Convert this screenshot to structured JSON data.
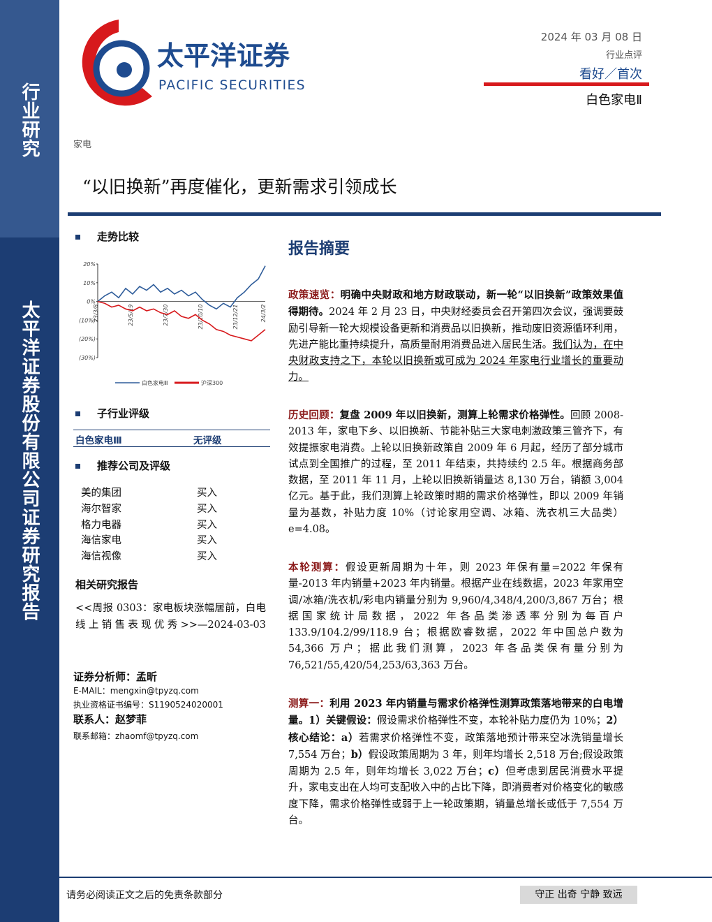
{
  "header": {
    "logo_cn": "太平洋证券",
    "logo_en": "PACIFIC SECURITIES",
    "date": "2024 年 03 月 08 日",
    "report_type": "行业点评",
    "rating": "看好／首次",
    "sector": "白色家电Ⅱ"
  },
  "sidebar": {
    "top": "行业研究",
    "bottom": "太平洋证券股份有限公司证券研究报告"
  },
  "category": "家电",
  "title": "“以旧换新”再度催化，更新需求引领成长",
  "trend": {
    "heading": "走势比较",
    "chart_data": {
      "type": "line",
      "categories": [
        "23/3/8",
        null,
        null,
        null,
        null,
        "23/5/19",
        null,
        null,
        null,
        null,
        "23/7/30",
        null,
        null,
        null,
        null,
        "23/10/10",
        null,
        null,
        null,
        null,
        "23/12/21",
        null,
        null,
        null,
        "24/3/2"
      ],
      "ylim": [
        -30,
        20
      ],
      "yticks": [
        {
          "value": 20,
          "label": "20%"
        },
        {
          "value": 10,
          "label": "10%"
        },
        {
          "value": 0,
          "label": "0%"
        },
        {
          "value": -10,
          "label": "(10%)"
        },
        {
          "value": -20,
          "label": "(20%)"
        },
        {
          "value": -30,
          "label": "(30%)"
        }
      ],
      "series": [
        {
          "name": "白色家电Ⅲ",
          "color": "#2e5c9a",
          "values": [
            0,
            3,
            5,
            2,
            7,
            4,
            8,
            6,
            9,
            5,
            7,
            4,
            6,
            3,
            5,
            1,
            -2,
            -4,
            -1,
            -3,
            2,
            5,
            9,
            12,
            19
          ]
        },
        {
          "name": "沪深300",
          "color": "#d7191c",
          "values": [
            0,
            -1,
            -3,
            -2,
            -4,
            -5,
            -3,
            -5,
            -4,
            -6,
            -7,
            -5,
            -8,
            -9,
            -7,
            -10,
            -12,
            -15,
            -16,
            -18,
            -19,
            -20,
            -21,
            -18,
            -15
          ]
        }
      ]
    }
  },
  "sub_industry": {
    "heading": "子行业评级",
    "rows": [
      [
        "白色家电Ⅲ",
        "无评级"
      ]
    ]
  },
  "companies": {
    "heading": "推荐公司及评级",
    "rows": [
      [
        "美的集团",
        "买入"
      ],
      [
        "海尔智家",
        "买入"
      ],
      [
        "格力电器",
        "买入"
      ],
      [
        "海信家电",
        "买入"
      ],
      [
        "海信视像",
        "买入"
      ]
    ]
  },
  "related": {
    "heading": "相关研究报告",
    "text": "<<周报 0303：家电板块涨幅居前，白电线上销售表现优秀>>—2024-03-03"
  },
  "analyst": {
    "name": "证券分析师：孟昕",
    "email": "E-MAIL：mengxin@tpyzq.com",
    "cert": "执业资格证书编号：S1190524020001",
    "contact": "联系人：赵梦菲",
    "contact_email": "联系邮箱：zhaomf@tpyzq.com"
  },
  "summary": {
    "heading": "报告摘要",
    "p1": [
      "政策速览：",
      "明确中央财政和地方财政联动，新一轮“以旧换新”政策效果值得期待。",
      "2024 年 2 月 23 日，中央财经委员会召开第四次会议，强调要鼓励引导新一轮大规模设备更新和消费品以旧换新，推动废旧资源循环利用，先进产能比重持续提升，高质量耐用消费品进入居民生活。",
      "我们认为，在中央财政支持之下，本轮以旧换新或可成为 2024 年家电行业增长的重要动力。"
    ],
    "p2": [
      "历史回顾：",
      "复盘 2009 年以旧换新，测算上轮需求价格弹性。",
      "回顾 2008-2013 年，家电下乡、以旧换新、节能补贴三大家电刺激政策三管齐下，有效提振家电消费。上轮以旧换新政策自 2009 年 6 月起，经历了部分城市试点到全国推广的过程，至 2011 年结束，共持续约 2.5 年。根据商务部数据，至 2011 年 11 月，上轮以旧换新销量达 8,130 万台，销额 3,004 亿元。基于此，我们测算上轮政策时期的需求价格弹性，即以 2009 年销量为基数，补贴力度 10%（讨论家用空调、冰箱、洗衣机三大品类） e=4.08。"
    ],
    "p3": [
      "本轮测算：",
      "假设更新周期为十年，则 2023 年保有量=2022 年保有量-2013 年内销量+2023 年内销量。根据产业在线数据，2023 年家用空调/冰箱/洗衣机/彩电内销量分别为 9,960/4,348/4,200/3,867 万台；根据国家统计局数据，2022 年各品类渗透率分别为每百户 133.9/104.2/99/118.9 台；根据欧睿数据，2022 年中国总户数为 54,366 万户；据此我们测算，2023 年各品类保有量分别为 76,521/55,420/54,253/63,363 万台。"
    ],
    "p4": [
      "测算一：",
      "利用 2023 年内销量与需求价格弹性测算政策落地带来的白电增量。1）关键假设：",
      "假设需求价格弹性不变，本轮补贴力度仍为 10%；",
      "2）核心结论：a）",
      "若需求价格弹性不变，政策落地预计带来空冰洗销量增长 7,554 万台；",
      "b）",
      "假设政策周期为 3 年，则年均增长 2,518 万台;假设政策周期为 2.5 年，则年均增长 3,022 万台；",
      "c）",
      "但考虑到居民消费水平提升，家电支出在人均可支配收入中的占比下降，即消费者对价格变化的敏感度下降，需求价格弹性或弱于上一轮政策期，销量总增长或低于 7,554 万台。"
    ]
  },
  "footer": {
    "disclaimer": "请务必阅读正文之后的免责条款部分",
    "motto": "守正 出奇 宁静 致远"
  }
}
